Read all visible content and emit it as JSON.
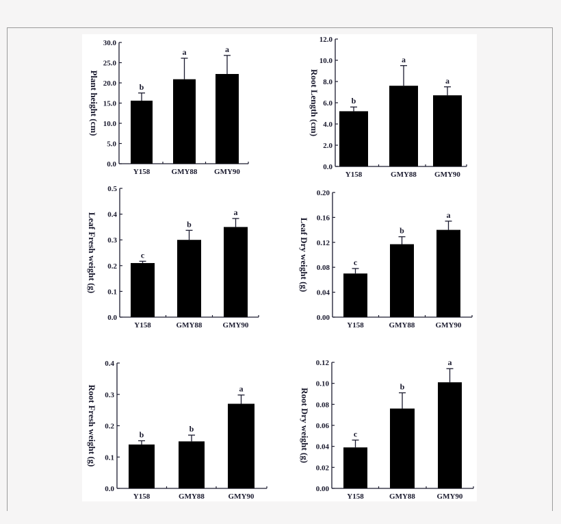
{
  "figure": {
    "background": "#f6f5f5",
    "panel_background": "#ffffff",
    "bar_color": "#000000",
    "text_color": "#1a1a2e"
  },
  "chart_data": [
    {
      "id": "plant-height",
      "type": "bar",
      "title": "",
      "xlabel": "",
      "ylabel": "Plant height (cm)",
      "categories": [
        "Y158",
        "GMY88",
        "GMY90"
      ],
      "values": [
        15.6,
        20.9,
        22.2
      ],
      "errors": [
        1.9,
        5.2,
        4.6
      ],
      "significance": [
        "b",
        "a",
        "a"
      ],
      "ylim": [
        0,
        30
      ],
      "yticks": [
        "0.0",
        "5.0",
        "10.0",
        "15.0",
        "20.0",
        "25.0",
        "30.0"
      ],
      "grid": false,
      "legend": null
    },
    {
      "id": "root-length",
      "type": "bar",
      "title": "",
      "xlabel": "",
      "ylabel": "Root Length (cm)",
      "categories": [
        "Y158",
        "GMY88",
        "GMY90"
      ],
      "values": [
        5.2,
        7.6,
        6.7
      ],
      "errors": [
        0.4,
        1.9,
        0.8
      ],
      "significance": [
        "b",
        "a",
        "a"
      ],
      "ylim": [
        0,
        12
      ],
      "yticks": [
        "0.0",
        "2.0",
        "4.0",
        "6.0",
        "8.0",
        "10.0",
        "12.0"
      ],
      "grid": false,
      "legend": null
    },
    {
      "id": "leaf-fresh-weight",
      "type": "bar",
      "title": "",
      "xlabel": "",
      "ylabel": "Leaf Fresh weight (g)",
      "categories": [
        "Y158",
        "GMY88",
        "GMY90"
      ],
      "values": [
        0.21,
        0.3,
        0.35
      ],
      "errors": [
        0.007,
        0.037,
        0.033
      ],
      "significance": [
        "c",
        "b",
        "a"
      ],
      "ylim": [
        0,
        0.5
      ],
      "yticks": [
        "0.0",
        "0.1",
        "0.2",
        "0.3",
        "0.4",
        "0.5"
      ],
      "grid": false,
      "legend": null
    },
    {
      "id": "leaf-dry-weight",
      "type": "bar",
      "title": "",
      "xlabel": "",
      "ylabel": "Leaf Dry weight (g)",
      "categories": [
        "Y158",
        "GMY88",
        "GMY90"
      ],
      "values": [
        0.07,
        0.117,
        0.14
      ],
      "errors": [
        0.008,
        0.012,
        0.014
      ],
      "significance": [
        "c",
        "b",
        "a"
      ],
      "ylim": [
        0,
        0.2
      ],
      "yticks": [
        "0.00",
        "0.04",
        "0.08",
        "0.12",
        "0.16",
        "0.20"
      ],
      "grid": false,
      "legend": null
    },
    {
      "id": "root-fresh-weight",
      "type": "bar",
      "title": "",
      "xlabel": "",
      "ylabel": "Root Fresh weight (g)",
      "categories": [
        "Y158",
        "GMY88",
        "GMY90"
      ],
      "values": [
        0.14,
        0.15,
        0.27
      ],
      "errors": [
        0.012,
        0.02,
        0.028
      ],
      "significance": [
        "b",
        "b",
        "a"
      ],
      "ylim": [
        0,
        0.4
      ],
      "yticks": [
        "0.0",
        "0.1",
        "0.2",
        "0.3",
        "0.4"
      ],
      "grid": false,
      "legend": null
    },
    {
      "id": "root-dry-weight",
      "type": "bar",
      "title": "",
      "xlabel": "",
      "ylabel": "Root Dry weight (g)",
      "categories": [
        "Y158",
        "GMY88",
        "GMY90"
      ],
      "values": [
        0.039,
        0.076,
        0.101
      ],
      "errors": [
        0.007,
        0.015,
        0.013
      ],
      "significance": [
        "c",
        "b",
        "a"
      ],
      "ylim": [
        0,
        0.12
      ],
      "yticks": [
        "0.00",
        "0.02",
        "0.04",
        "0.06",
        "0.08",
        "0.10",
        "0.12"
      ],
      "grid": false,
      "legend": null
    }
  ]
}
